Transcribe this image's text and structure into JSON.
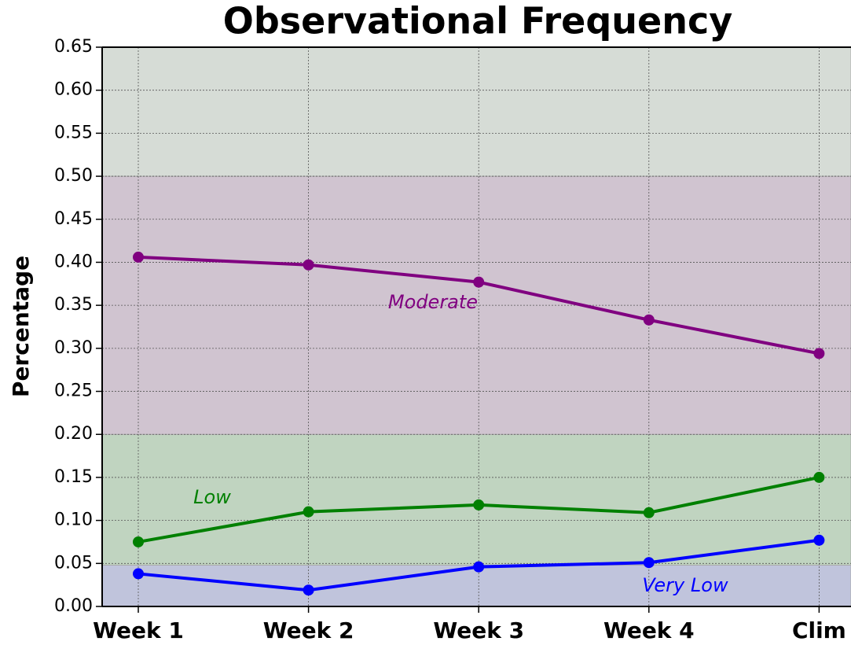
{
  "chart_data": {
    "type": "line",
    "title": "Observational Frequency",
    "ylabel": "Percentage",
    "categories": [
      "Week 1",
      "Week 2",
      "Week 3",
      "Week 4",
      "Clim"
    ],
    "series": [
      {
        "color": "#800080",
        "values": [
          0.406,
          0.397,
          0.377,
          0.333,
          0.294
        ]
      },
      {
        "color": "#008000",
        "values": [
          0.075,
          0.11,
          0.118,
          0.109,
          0.15
        ]
      },
      {
        "color": "#0000ff",
        "values": [
          0.038,
          0.019,
          0.046,
          0.051,
          0.077
        ]
      }
    ],
    "bands": [
      {
        "from": 0,
        "to": 0.048,
        "color": "#c0c4dc",
        "label": "Very Low",
        "label_color": "#0000ff"
      },
      {
        "from": 0.048,
        "to": 0.2,
        "color": "#c0d4c0",
        "label": "Low",
        "label_color": "#008000"
      },
      {
        "from": 0.2,
        "to": 0.5,
        "color": "#d0c4d0",
        "label": "Moderate",
        "label_color": "#800080"
      },
      {
        "from": 0.5,
        "to": 0.65,
        "color": "#d6dcd6"
      }
    ],
    "ylim": [
      0,
      0.65
    ],
    "yticks": [
      {
        "value": 0,
        "label": "0.00"
      },
      {
        "value": 0.05,
        "label": "0.05"
      },
      {
        "value": 0.1,
        "label": "0.10"
      },
      {
        "value": 0.15,
        "label": "0.15"
      },
      {
        "value": 0.2,
        "label": "0.20"
      },
      {
        "value": 0.25,
        "label": "0.25"
      },
      {
        "value": 0.3,
        "label": "0.30"
      },
      {
        "value": 0.35,
        "label": "0.35"
      },
      {
        "value": 0.4,
        "label": "0.40"
      },
      {
        "value": 0.45,
        "label": "0.45"
      },
      {
        "value": 0.5,
        "label": "0.50"
      },
      {
        "value": 0.55,
        "label": "0.55"
      },
      {
        "value": 0.6,
        "label": "0.60"
      },
      {
        "value": 0.65,
        "label": "0.65"
      }
    ],
    "grid": true
  }
}
